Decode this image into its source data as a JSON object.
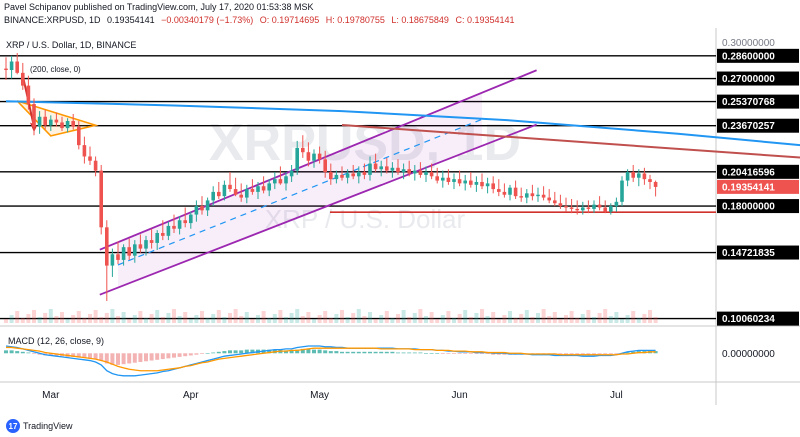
{
  "header": {
    "published": "Pavel Schipanov published on TradingView.com, July 17, 2020 01:53:38 MSK",
    "symbol": "BINANCE:XRPUSD, 1D",
    "last": "0.19354141",
    "change": "−0.00340179 (−1.73%)",
    "open": "O: 0.19714695",
    "high": "H: 0.19780755",
    "low": "L: 0.18675849",
    "close": "C: 0.19354141"
  },
  "pane_title": "XRP / U.S. Dollar, 1D, BINANCE",
  "ma_label": "(200, close, 0)",
  "watermark": {
    "big": "XRPUSD, 1D",
    "small": "XRP / U.S. Dollar"
  },
  "macd_label": "MACD (12, 26, close, 9)",
  "branding": "TradingView",
  "colors": {
    "up": "#26a69a",
    "down": "#ef5350",
    "ma": "#2196f3",
    "channel": "#9c27b0",
    "resistance": "#c0504d",
    "support_red": "#d0312d",
    "triangle": "#ff9800",
    "level": "#000000",
    "macd_line": "#2196f3",
    "signal_line": "#ff9800"
  },
  "chart_data": {
    "type": "candlestick",
    "symbol": "BINANCE:XRPUSD",
    "interval": "1D",
    "y_axis_labels": [
      "0.30000000",
      "0.28600000",
      "0.27000000",
      "0.25370768",
      "0.23670257",
      "0.20416596",
      "0.19354141",
      "0.18000000",
      "0.14721835",
      "0.10060234"
    ],
    "current_price": "0.19354141",
    "horizontal_levels": [
      0.286,
      0.27,
      0.25370768,
      0.23670257,
      0.20416596,
      0.18,
      0.14721835,
      0.10060234
    ],
    "support_line_red": 0.1757,
    "x_labels": [
      "Mar",
      "Apr",
      "May",
      "Jun",
      "Jul"
    ],
    "ma200_points": [
      [
        0,
        0.254
      ],
      [
        30,
        0.251
      ],
      [
        60,
        0.247
      ],
      [
        90,
        0.2405
      ],
      [
        120,
        0.231
      ],
      [
        150,
        0.22
      ],
      [
        168,
        0.2042
      ]
    ],
    "resistance_line_points": [
      [
        60,
        0.2372
      ],
      [
        175,
        0.2015
      ]
    ],
    "channel": {
      "upper": [
        [
          20,
          0.1545
        ],
        [
          85,
          0.26
        ]
      ],
      "lower": [
        [
          20,
          0.1225
        ],
        [
          85,
          0.2225
        ]
      ]
    },
    "triangle": [
      [
        2,
        0.2542
      ],
      [
        8,
        0.2295
      ],
      [
        16,
        0.237
      ]
    ],
    "ohlc": [
      [
        0.277,
        0.285,
        0.269,
        0.276
      ],
      [
        0.276,
        0.286,
        0.27,
        0.282
      ],
      [
        0.282,
        0.288,
        0.273,
        0.274
      ],
      [
        0.274,
        0.281,
        0.262,
        0.265
      ],
      [
        0.265,
        0.272,
        0.248,
        0.252
      ],
      [
        0.252,
        0.256,
        0.23,
        0.236
      ],
      [
        0.236,
        0.247,
        0.231,
        0.243
      ],
      [
        0.243,
        0.248,
        0.234,
        0.237
      ],
      [
        0.237,
        0.244,
        0.233,
        0.241
      ],
      [
        0.241,
        0.246,
        0.236,
        0.239
      ],
      [
        0.239,
        0.243,
        0.233,
        0.235
      ],
      [
        0.235,
        0.242,
        0.232,
        0.24
      ],
      [
        0.24,
        0.245,
        0.234,
        0.236
      ],
      [
        0.236,
        0.24,
        0.22,
        0.223
      ],
      [
        0.223,
        0.229,
        0.21,
        0.215
      ],
      [
        0.215,
        0.222,
        0.209,
        0.212
      ],
      [
        0.212,
        0.215,
        0.201,
        0.205
      ],
      [
        0.205,
        0.209,
        0.16,
        0.165
      ],
      [
        0.165,
        0.17,
        0.113,
        0.138
      ],
      [
        0.138,
        0.15,
        0.13,
        0.146
      ],
      [
        0.146,
        0.155,
        0.139,
        0.142
      ],
      [
        0.142,
        0.153,
        0.138,
        0.151
      ],
      [
        0.151,
        0.157,
        0.142,
        0.145
      ],
      [
        0.145,
        0.156,
        0.14,
        0.153
      ],
      [
        0.153,
        0.16,
        0.147,
        0.15
      ],
      [
        0.15,
        0.159,
        0.145,
        0.156
      ],
      [
        0.156,
        0.164,
        0.15,
        0.154
      ],
      [
        0.154,
        0.163,
        0.149,
        0.161
      ],
      [
        0.161,
        0.17,
        0.156,
        0.159
      ],
      [
        0.159,
        0.169,
        0.156,
        0.166
      ],
      [
        0.166,
        0.174,
        0.161,
        0.164
      ],
      [
        0.164,
        0.173,
        0.16,
        0.17
      ],
      [
        0.17,
        0.179,
        0.165,
        0.168
      ],
      [
        0.168,
        0.176,
        0.164,
        0.174
      ],
      [
        0.174,
        0.184,
        0.169,
        0.18
      ],
      [
        0.18,
        0.187,
        0.174,
        0.177
      ],
      [
        0.177,
        0.186,
        0.173,
        0.184
      ],
      [
        0.184,
        0.194,
        0.18,
        0.19
      ],
      [
        0.19,
        0.197,
        0.185,
        0.187
      ],
      [
        0.187,
        0.198,
        0.184,
        0.195
      ],
      [
        0.195,
        0.204,
        0.19,
        0.192
      ],
      [
        0.192,
        0.2,
        0.187,
        0.188
      ],
      [
        0.188,
        0.196,
        0.183,
        0.186
      ],
      [
        0.186,
        0.195,
        0.182,
        0.192
      ],
      [
        0.192,
        0.199,
        0.188,
        0.19
      ],
      [
        0.19,
        0.197,
        0.185,
        0.194
      ],
      [
        0.194,
        0.201,
        0.189,
        0.191
      ],
      [
        0.191,
        0.199,
        0.187,
        0.196
      ],
      [
        0.196,
        0.204,
        0.192,
        0.199
      ],
      [
        0.199,
        0.208,
        0.195,
        0.196
      ],
      [
        0.196,
        0.204,
        0.191,
        0.201
      ],
      [
        0.201,
        0.209,
        0.197,
        0.205
      ],
      [
        0.205,
        0.226,
        0.202,
        0.221
      ],
      [
        0.221,
        0.23,
        0.214,
        0.218
      ],
      [
        0.218,
        0.225,
        0.208,
        0.212
      ],
      [
        0.212,
        0.22,
        0.207,
        0.217
      ],
      [
        0.217,
        0.222,
        0.21,
        0.213
      ],
      [
        0.213,
        0.219,
        0.2,
        0.204
      ],
      [
        0.204,
        0.21,
        0.195,
        0.199
      ],
      [
        0.199,
        0.205,
        0.196,
        0.202
      ],
      [
        0.202,
        0.208,
        0.198,
        0.2
      ],
      [
        0.2,
        0.206,
        0.196,
        0.203
      ],
      [
        0.203,
        0.209,
        0.199,
        0.201
      ],
      [
        0.201,
        0.208,
        0.196,
        0.204
      ],
      [
        0.204,
        0.21,
        0.199,
        0.202
      ],
      [
        0.202,
        0.215,
        0.198,
        0.21
      ],
      [
        0.21,
        0.217,
        0.204,
        0.206
      ],
      [
        0.206,
        0.212,
        0.201,
        0.208
      ],
      [
        0.208,
        0.214,
        0.203,
        0.205
      ],
      [
        0.205,
        0.211,
        0.2,
        0.207
      ],
      [
        0.207,
        0.213,
        0.202,
        0.204
      ],
      [
        0.204,
        0.21,
        0.199,
        0.206
      ],
      [
        0.206,
        0.212,
        0.201,
        0.203
      ],
      [
        0.203,
        0.209,
        0.198,
        0.205
      ],
      [
        0.205,
        0.211,
        0.2,
        0.202
      ],
      [
        0.202,
        0.208,
        0.197,
        0.204
      ],
      [
        0.204,
        0.21,
        0.199,
        0.201
      ],
      [
        0.201,
        0.207,
        0.196,
        0.198
      ],
      [
        0.198,
        0.205,
        0.193,
        0.2
      ],
      [
        0.2,
        0.206,
        0.195,
        0.197
      ],
      [
        0.197,
        0.203,
        0.192,
        0.199
      ],
      [
        0.199,
        0.205,
        0.194,
        0.196
      ],
      [
        0.196,
        0.202,
        0.191,
        0.198
      ],
      [
        0.198,
        0.204,
        0.193,
        0.195
      ],
      [
        0.195,
        0.201,
        0.19,
        0.197
      ],
      [
        0.197,
        0.203,
        0.192,
        0.194
      ],
      [
        0.194,
        0.2,
        0.189,
        0.196
      ],
      [
        0.196,
        0.201,
        0.189,
        0.192
      ],
      [
        0.192,
        0.199,
        0.187,
        0.19
      ],
      [
        0.19,
        0.196,
        0.186,
        0.188
      ],
      [
        0.188,
        0.195,
        0.184,
        0.193
      ],
      [
        0.193,
        0.198,
        0.185,
        0.187
      ],
      [
        0.187,
        0.193,
        0.183,
        0.186
      ],
      [
        0.186,
        0.192,
        0.182,
        0.189
      ],
      [
        0.189,
        0.195,
        0.184,
        0.187
      ],
      [
        0.187,
        0.193,
        0.183,
        0.188
      ],
      [
        0.188,
        0.194,
        0.184,
        0.186
      ],
      [
        0.186,
        0.192,
        0.182,
        0.184
      ],
      [
        0.184,
        0.19,
        0.18,
        0.182
      ],
      [
        0.182,
        0.188,
        0.178,
        0.18
      ],
      [
        0.18,
        0.186,
        0.176,
        0.179
      ],
      [
        0.179,
        0.185,
        0.175,
        0.178
      ],
      [
        0.178,
        0.184,
        0.174,
        0.177
      ],
      [
        0.177,
        0.183,
        0.174,
        0.179
      ],
      [
        0.179,
        0.184,
        0.175,
        0.178
      ],
      [
        0.178,
        0.184,
        0.175,
        0.181
      ],
      [
        0.181,
        0.187,
        0.177,
        0.179
      ],
      [
        0.179,
        0.184,
        0.175,
        0.176
      ],
      [
        0.176,
        0.182,
        0.174,
        0.18
      ],
      [
        0.18,
        0.186,
        0.176,
        0.183
      ],
      [
        0.183,
        0.201,
        0.18,
        0.198
      ],
      [
        0.198,
        0.206,
        0.194,
        0.204
      ],
      [
        0.204,
        0.209,
        0.197,
        0.2
      ],
      [
        0.2,
        0.206,
        0.194,
        0.203
      ],
      [
        0.203,
        0.207,
        0.195,
        0.199
      ],
      [
        0.199,
        0.202,
        0.192,
        0.197
      ],
      [
        0.197,
        0.198,
        0.1868,
        0.1935
      ]
    ],
    "macd": {
      "axis_label": "0.00000000",
      "hist": [
        0.004,
        0.004,
        0.003,
        0.002,
        0.001,
        -0.001,
        -0.002,
        -0.003,
        -0.003,
        -0.004,
        -0.004,
        -0.005,
        -0.005,
        -0.006,
        -0.006,
        -0.007,
        -0.008,
        -0.01,
        -0.014,
        -0.016,
        -0.016,
        -0.015,
        -0.014,
        -0.013,
        -0.012,
        -0.011,
        -0.01,
        -0.009,
        -0.008,
        -0.007,
        -0.006,
        -0.005,
        -0.004,
        -0.003,
        -0.002,
        -0.001,
        0.0,
        0.001,
        0.002,
        0.003,
        0.004,
        0.004,
        0.004,
        0.005,
        0.005,
        0.005,
        0.005,
        0.005,
        0.005,
        0.005,
        0.004,
        0.004,
        0.005,
        0.006,
        0.006,
        0.005,
        0.005,
        0.004,
        0.003,
        0.003,
        0.002,
        0.002,
        0.002,
        0.002,
        0.002,
        0.002,
        0.002,
        0.002,
        0.002,
        0.002,
        0.001,
        0.001,
        0.001,
        0.001,
        0.001,
        0.0,
        0.0,
        0.0,
        -0.001,
        -0.001,
        -0.001,
        -0.001,
        -0.001,
        -0.001,
        -0.001,
        -0.001,
        -0.001,
        -0.002,
        -0.002,
        -0.002,
        -0.002,
        -0.002,
        -0.002,
        -0.002,
        -0.002,
        -0.002,
        -0.002,
        -0.002,
        -0.002,
        -0.002,
        -0.002,
        -0.002,
        -0.002,
        -0.002,
        -0.002,
        -0.002,
        -0.001,
        -0.001,
        -0.001,
        -0.001,
        0.0,
        0.001,
        0.002,
        0.003,
        0.003,
        0.003,
        0.003
      ],
      "macd_line": [
        0.01,
        0.009,
        0.008,
        0.006,
        0.004,
        0.002,
        0.0,
        -0.002,
        -0.003,
        -0.004,
        -0.005,
        -0.006,
        -0.007,
        -0.008,
        -0.009,
        -0.01,
        -0.012,
        -0.016,
        -0.024,
        -0.028,
        -0.03,
        -0.031,
        -0.031,
        -0.031,
        -0.03,
        -0.029,
        -0.028,
        -0.027,
        -0.025,
        -0.024,
        -0.022,
        -0.02,
        -0.018,
        -0.016,
        -0.014,
        -0.012,
        -0.01,
        -0.008,
        -0.006,
        -0.004,
        -0.003,
        -0.002,
        -0.001,
        0.0,
        0.001,
        0.002,
        0.003,
        0.004,
        0.005,
        0.005,
        0.006,
        0.006,
        0.008,
        0.009,
        0.01,
        0.01,
        0.01,
        0.009,
        0.009,
        0.008,
        0.008,
        0.007,
        0.007,
        0.007,
        0.007,
        0.007,
        0.007,
        0.007,
        0.007,
        0.007,
        0.006,
        0.006,
        0.006,
        0.006,
        0.005,
        0.005,
        0.005,
        0.004,
        0.004,
        0.003,
        0.003,
        0.002,
        0.002,
        0.002,
        0.001,
        0.001,
        0.001,
        0.0,
        0.0,
        0.0,
        -0.001,
        -0.001,
        -0.001,
        -0.001,
        -0.002,
        -0.002,
        -0.002,
        -0.002,
        -0.003,
        -0.003,
        -0.003,
        -0.003,
        -0.003,
        -0.004,
        -0.004,
        -0.004,
        -0.003,
        -0.003,
        -0.003,
        -0.002,
        0.0,
        0.002,
        0.003,
        0.004,
        0.004,
        0.004,
        0.004
      ],
      "signal_line": [
        0.008,
        0.008,
        0.007,
        0.006,
        0.005,
        0.004,
        0.003,
        0.001,
        0.0,
        -0.001,
        -0.002,
        -0.003,
        -0.004,
        -0.005,
        -0.006,
        -0.007,
        -0.008,
        -0.01,
        -0.012,
        -0.015,
        -0.018,
        -0.02,
        -0.022,
        -0.023,
        -0.024,
        -0.024,
        -0.024,
        -0.024,
        -0.023,
        -0.022,
        -0.021,
        -0.02,
        -0.018,
        -0.017,
        -0.015,
        -0.013,
        -0.012,
        -0.01,
        -0.008,
        -0.007,
        -0.006,
        -0.005,
        -0.004,
        -0.003,
        -0.002,
        -0.001,
        0.0,
        0.001,
        0.002,
        0.003,
        0.003,
        0.004,
        0.004,
        0.005,
        0.006,
        0.007,
        0.007,
        0.007,
        0.007,
        0.007,
        0.007,
        0.007,
        0.007,
        0.007,
        0.007,
        0.007,
        0.007,
        0.006,
        0.006,
        0.006,
        0.006,
        0.006,
        0.006,
        0.005,
        0.005,
        0.005,
        0.005,
        0.004,
        0.004,
        0.004,
        0.003,
        0.003,
        0.003,
        0.002,
        0.002,
        0.002,
        0.001,
        0.001,
        0.001,
        0.001,
        0.0,
        0.0,
        0.0,
        -0.001,
        -0.001,
        -0.001,
        -0.001,
        -0.001,
        -0.001,
        -0.002,
        -0.002,
        -0.002,
        -0.002,
        -0.002,
        -0.002,
        -0.002,
        -0.002,
        -0.002,
        -0.002,
        -0.002,
        -0.001,
        -0.001,
        0.0,
        0.001,
        0.001,
        0.002,
        0.002
      ]
    }
  }
}
